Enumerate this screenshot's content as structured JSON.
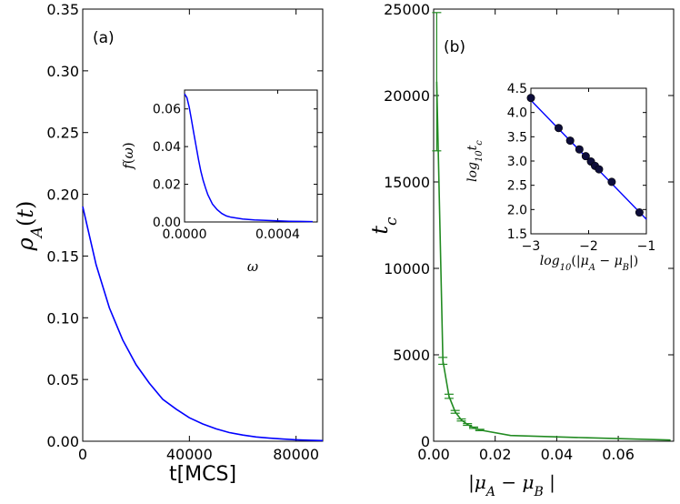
{
  "chart_data": [
    {
      "id": "panel-a",
      "type": "line",
      "panel_label": "(a)",
      "xlabel": "t[MCS]",
      "ylabel": "ρ_A(t)",
      "xlim": [
        0,
        90000
      ],
      "ylim": [
        0,
        0.35
      ],
      "x_ticks": [
        0,
        40000,
        80000
      ],
      "x_tick_labels": [
        "0",
        "40000",
        "80000"
      ],
      "y_ticks": [
        0,
        0.05,
        0.1,
        0.15,
        0.2,
        0.25,
        0.3,
        0.35
      ],
      "y_tick_labels": [
        "0.00",
        "0.05",
        "0.10",
        "0.15",
        "0.20",
        "0.25",
        "0.30",
        "0.35"
      ],
      "grid": false,
      "line_color": "#0000ff",
      "series": [
        {
          "x": [
            0,
            5000,
            10000,
            15000,
            20000,
            25000,
            30000,
            35000,
            40000,
            45000,
            50000,
            55000,
            60000,
            65000,
            70000,
            75000,
            80000,
            85000,
            90000
          ],
          "y": [
            0.19,
            0.143,
            0.108,
            0.082,
            0.062,
            0.047,
            0.034,
            0.026,
            0.019,
            0.014,
            0.01,
            0.007,
            0.005,
            0.0035,
            0.0025,
            0.0018,
            0.0012,
            0.0008,
            0.0005
          ]
        }
      ],
      "inset": {
        "type": "line",
        "xlabel": "ω",
        "ylabel": "f(ω)",
        "xlim": [
          0,
          0.00057
        ],
        "ylim": [
          0,
          0.07
        ],
        "x_ticks": [
          0,
          0.0004
        ],
        "x_tick_labels": [
          "0.0000",
          "0.0004"
        ],
        "y_ticks": [
          0,
          0.02,
          0.04,
          0.06
        ],
        "y_tick_labels": [
          "0.00",
          "0.02",
          "0.04",
          "0.06"
        ],
        "line_color": "#0000ff",
        "series": [
          {
            "x": [
              0,
              1e-05,
              2e-05,
              3e-05,
              4e-05,
              5e-05,
              6e-05,
              7e-05,
              8e-05,
              9e-05,
              0.0001,
              0.00012,
              0.00014,
              0.00016,
              0.00018,
              0.0002,
              0.00025,
              0.0003,
              0.00035,
              0.0004,
              0.00045,
              0.0005,
              0.00055
            ],
            "y": [
              0.068,
              0.066,
              0.061,
              0.054,
              0.047,
              0.04,
              0.033,
              0.027,
              0.022,
              0.018,
              0.0145,
              0.0095,
              0.0065,
              0.0045,
              0.0032,
              0.0025,
              0.0016,
              0.0011,
              0.0008,
              0.0006,
              0.0004,
              0.0003,
              0.0002
            ]
          }
        ]
      }
    },
    {
      "id": "panel-b",
      "type": "line",
      "panel_label": "(b)",
      "xlabel": "|μ_A − μ_B|",
      "ylabel": "t_c",
      "xlim": [
        0,
        0.078
      ],
      "ylim": [
        0,
        25000
      ],
      "x_ticks": [
        0,
        0.02,
        0.04,
        0.06
      ],
      "x_tick_labels": [
        "0.00",
        "0.02",
        "0.04",
        "0.06"
      ],
      "y_ticks": [
        0,
        5000,
        10000,
        15000,
        20000,
        25000
      ],
      "y_tick_labels": [
        "0",
        "5000",
        "10000",
        "15000",
        "20000",
        "25000"
      ],
      "grid": false,
      "line_color": "#228b22",
      "series": [
        {
          "x": [
            0.001,
            0.003,
            0.005,
            0.007,
            0.009,
            0.011,
            0.013,
            0.015,
            0.025,
            0.05,
            0.077
          ],
          "y": [
            20800,
            4650,
            2600,
            1700,
            1230,
            970,
            780,
            650,
            330,
            200,
            70
          ],
          "err": [
            4000,
            200,
            120,
            80,
            60,
            50,
            40,
            40,
            0,
            0,
            0
          ]
        }
      ],
      "inset": {
        "type": "scatter",
        "xlabel": "log10(|μ_A − μ_B|)",
        "ylabel": "log10 t_c",
        "xlim": [
          -3,
          -1
        ],
        "ylim": [
          1.5,
          4.5
        ],
        "x_ticks": [
          -3,
          -2,
          -1
        ],
        "x_tick_labels": [
          "−3",
          "−2",
          "−1"
        ],
        "y_ticks": [
          1.5,
          2.0,
          2.5,
          3.0,
          3.5,
          4.0,
          4.5
        ],
        "y_tick_labels": [
          "1.5",
          "2.0",
          "2.5",
          "3.0",
          "3.5",
          "4.0",
          "4.5"
        ],
        "point_color": "#0d0d3a",
        "fit_color": "#0000ff",
        "fit_line": {
          "x": [
            -3,
            -1
          ],
          "y": [
            4.25,
            1.8
          ]
        },
        "points": {
          "x": [
            -3.0,
            -2.52,
            -2.32,
            -2.16,
            -2.05,
            -1.96,
            -1.89,
            -1.82,
            -1.6,
            -1.12
          ],
          "y": [
            4.3,
            3.68,
            3.42,
            3.24,
            3.1,
            2.99,
            2.9,
            2.83,
            2.57,
            1.94
          ]
        }
      }
    }
  ]
}
